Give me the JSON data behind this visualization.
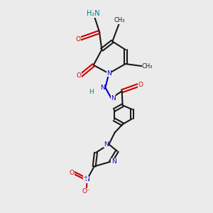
{
  "bg_color": "#ebebeb",
  "bond_color": "#1a1a1a",
  "carbon_color": "#1a1a1a",
  "nitrogen_color": "#0000cc",
  "oxygen_color": "#cc0000",
  "nh2_color": "#008080",
  "atoms": {
    "NH2": {
      "text": "H₂N",
      "color": "#008080"
    },
    "O_amide": {
      "text": "O",
      "color": "#cc0000"
    },
    "N_ring": {
      "text": "N",
      "color": "#0000cc"
    },
    "N_amino": {
      "text": "N",
      "color": "#0000cc"
    },
    "H_amino": {
      "text": "H",
      "color": "#008080"
    },
    "O_amide2": {
      "text": "O",
      "color": "#cc0000"
    },
    "O_keto": {
      "text": "O",
      "color": "#cc0000"
    },
    "N_pyr1": {
      "text": "N",
      "color": "#0000cc"
    },
    "N_pyr2": {
      "text": "N",
      "color": "#0000cc"
    },
    "N_nitro": {
      "text": "N",
      "color": "#0000cc"
    },
    "O_nitro1": {
      "text": "O",
      "color": "#cc0000"
    },
    "O_nitro2": {
      "text": "O⁻",
      "color": "#cc0000"
    },
    "N_plus": {
      "text": "+",
      "color": "#0000cc"
    }
  },
  "figsize": [
    3.0,
    3.0
  ],
  "dpi": 100
}
